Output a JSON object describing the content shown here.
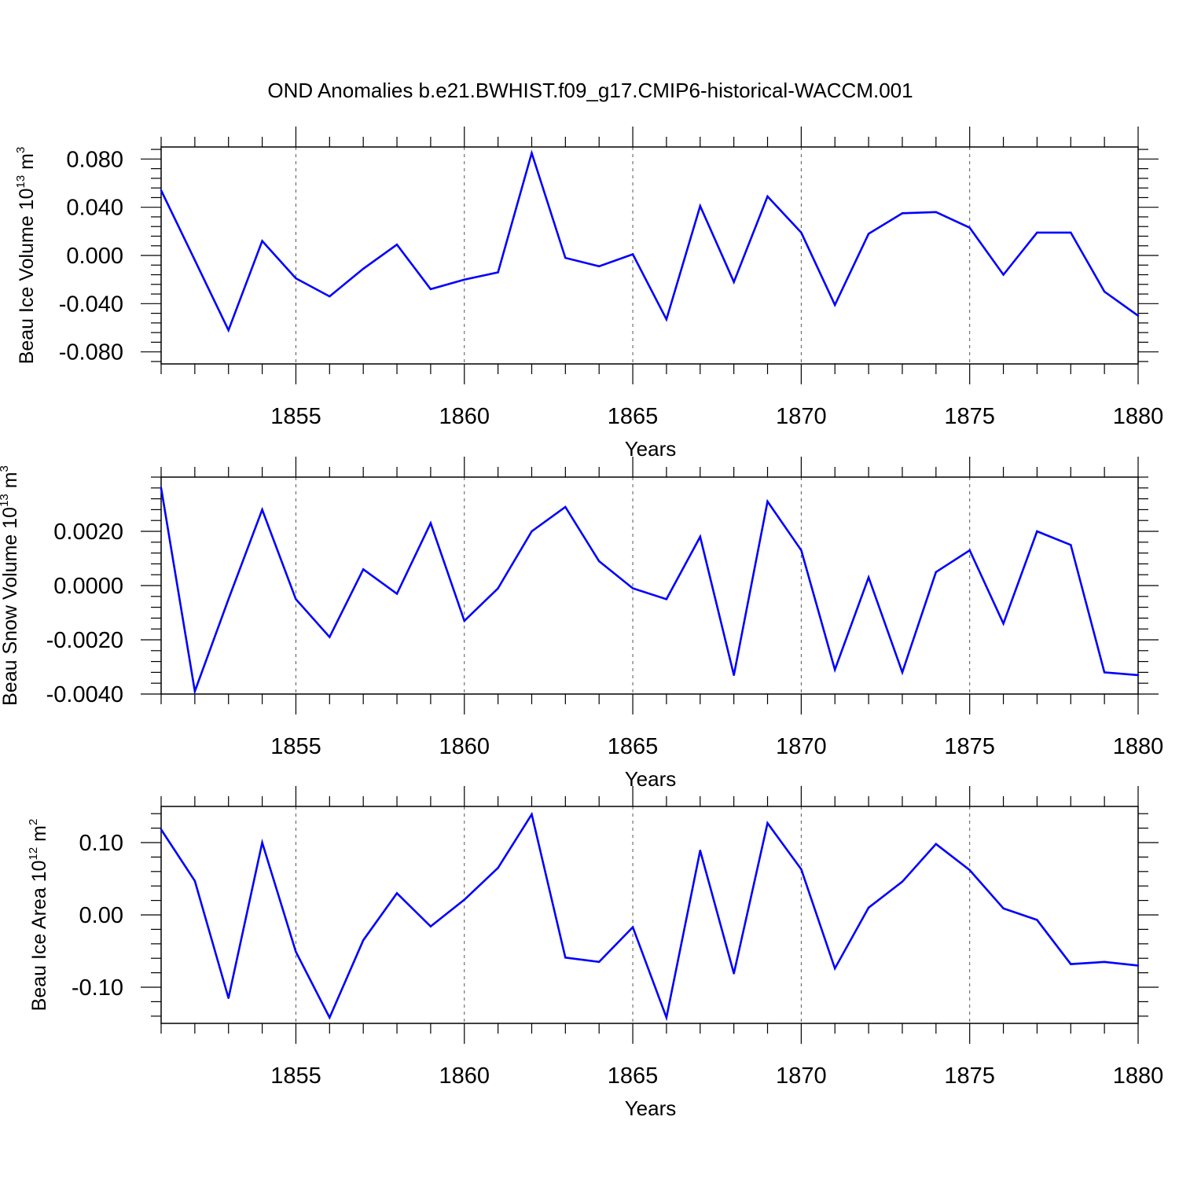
{
  "title": "OND Anomalies b.e21.BWHIST.f09_g17.CMIP6-historical-WACCM.001",
  "colors": {
    "line": "#0000ff",
    "axis": "#000000",
    "grid": "#555555"
  },
  "chart_data": [
    {
      "type": "line",
      "xlabel": "Years",
      "ylabel": {
        "base": "Beau Ice Volume 10",
        "exp": "13",
        "unit": " m",
        "unit_exp": "3"
      },
      "xlim": [
        1851,
        1880
      ],
      "ylim": [
        -0.09,
        0.09
      ],
      "x_ticks": [
        "1855",
        "1860",
        "1865",
        "1870",
        "1875",
        "1880"
      ],
      "y_ticks": [
        "0.080",
        "0.040",
        "0.000",
        "-0.040",
        "-0.080"
      ],
      "y_tick_values": [
        0.08,
        0.04,
        0.0,
        -0.04,
        -0.08
      ],
      "grid": "vertical dashed at major x ticks",
      "x": [
        1851,
        1852,
        1853,
        1854,
        1855,
        1856,
        1857,
        1858,
        1859,
        1860,
        1861,
        1862,
        1863,
        1864,
        1865,
        1866,
        1867,
        1868,
        1869,
        1870,
        1871,
        1872,
        1873,
        1874,
        1875,
        1876,
        1877,
        1878,
        1879,
        1880
      ],
      "values": [
        0.054,
        -0.004,
        -0.062,
        0.012,
        -0.019,
        -0.034,
        -0.011,
        0.009,
        -0.028,
        -0.02,
        -0.014,
        0.085,
        -0.002,
        -0.009,
        0.001,
        -0.053,
        0.041,
        -0.022,
        0.049,
        0.019,
        -0.041,
        0.018,
        0.035,
        0.036,
        0.023,
        -0.016,
        0.019,
        0.019,
        -0.03,
        -0.05
      ]
    },
    {
      "type": "line",
      "xlabel": "Years",
      "ylabel": {
        "base": "Beau Snow Volume 10",
        "exp": "13",
        "unit": " m",
        "unit_exp": "3"
      },
      "xlim": [
        1851,
        1880
      ],
      "ylim": [
        -0.004,
        0.004
      ],
      "x_ticks": [
        "1855",
        "1860",
        "1865",
        "1870",
        "1875",
        "1880"
      ],
      "y_ticks": [
        "0.0020",
        "0.0000",
        "-0.0020",
        "-0.0040"
      ],
      "y_tick_values": [
        0.002,
        0.0,
        -0.002,
        -0.004
      ],
      "grid": "vertical dashed at major x ticks",
      "x": [
        1851,
        1852,
        1853,
        1854,
        1855,
        1856,
        1857,
        1858,
        1859,
        1860,
        1861,
        1862,
        1863,
        1864,
        1865,
        1866,
        1867,
        1868,
        1869,
        1870,
        1871,
        1872,
        1873,
        1874,
        1875,
        1876,
        1877,
        1878,
        1879,
        1880
      ],
      "values": [
        0.0036,
        -0.0039,
        -0.0005,
        0.0028,
        -0.0005,
        -0.0019,
        0.0006,
        -0.0003,
        0.0023,
        -0.0013,
        -0.0001,
        0.002,
        0.0029,
        0.0009,
        -0.0001,
        -0.0005,
        0.0018,
        -0.0033,
        0.0031,
        0.0013,
        -0.0031,
        0.0003,
        -0.0032,
        0.0005,
        0.0013,
        -0.0014,
        0.002,
        0.0015,
        -0.0032,
        -0.0033
      ]
    },
    {
      "type": "line",
      "xlabel": "Years",
      "ylabel": {
        "base": "Beau Ice Area 10",
        "exp": "12",
        "unit": " m",
        "unit_exp": "2"
      },
      "xlim": [
        1851,
        1880
      ],
      "ylim": [
        -0.15,
        0.15
      ],
      "x_ticks": [
        "1855",
        "1860",
        "1865",
        "1870",
        "1875",
        "1880"
      ],
      "y_ticks": [
        "0.10",
        "0.00",
        "-0.10"
      ],
      "y_tick_values": [
        0.1,
        0.0,
        -0.1
      ],
      "grid": "vertical dashed at major x ticks",
      "x": [
        1851,
        1852,
        1853,
        1854,
        1855,
        1856,
        1857,
        1858,
        1859,
        1860,
        1861,
        1862,
        1863,
        1864,
        1865,
        1866,
        1867,
        1868,
        1869,
        1870,
        1871,
        1872,
        1873,
        1874,
        1875,
        1876,
        1877,
        1878,
        1879,
        1880
      ],
      "values": [
        0.118,
        0.047,
        -0.115,
        0.1,
        -0.051,
        -0.142,
        -0.035,
        0.03,
        -0.016,
        0.021,
        0.065,
        0.139,
        -0.059,
        -0.065,
        -0.017,
        -0.142,
        0.089,
        -0.081,
        0.127,
        0.063,
        -0.074,
        0.01,
        0.046,
        0.098,
        0.062,
        0.009,
        -0.007,
        -0.068,
        -0.065,
        -0.07
      ]
    }
  ]
}
